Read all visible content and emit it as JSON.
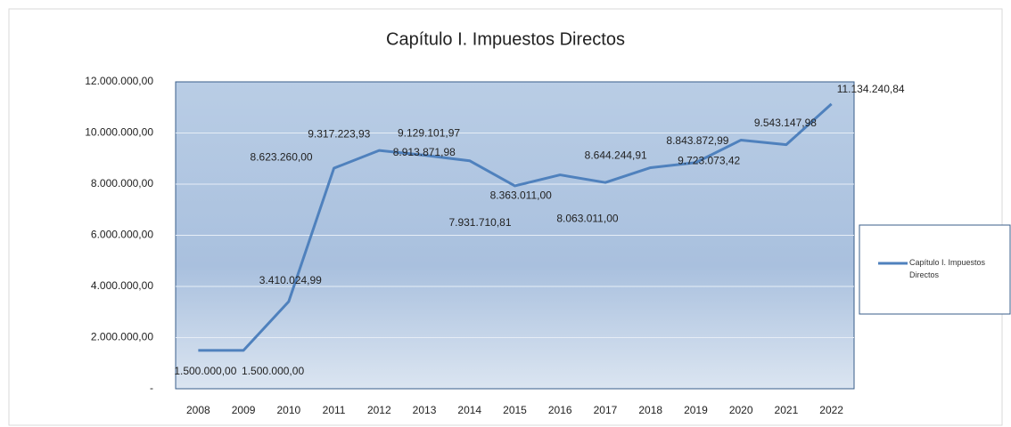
{
  "chart_data": {
    "type": "line",
    "title": "Capítulo I. Impuestos Directos",
    "categories": [
      "2008",
      "2009",
      "2010",
      "2011",
      "2012",
      "2013",
      "2014",
      "2015",
      "2016",
      "2017",
      "2018",
      "2019",
      "2020",
      "2021",
      "2022"
    ],
    "series": [
      {
        "name": "Capítulo I. Impuestos Directos",
        "color": "#4f81bd",
        "values": [
          1500000,
          1500000,
          3410024.99,
          8623260,
          9317223.93,
          9129101.97,
          8913871.98,
          7931710.81,
          8363011,
          8063011,
          8644244.91,
          8843872.99,
          9723073.42,
          9543147.98,
          11134240.84
        ],
        "value_labels": [
          "1.500.000,00",
          "1.500.000,00",
          "3.410.024,99",
          "8.623.260,00",
          "9.317.223,93",
          "9.129.101,97",
          "8.913.871,98",
          "7.931.710,81",
          "8.363.011,00",
          "8.063.011,00",
          "8.644.244,91",
          "8.843.872,99",
          "9.723.073,42",
          "9.543.147,98",
          "11.134.240,84"
        ]
      }
    ],
    "ylim": [
      0,
      12000000
    ],
    "yticks": [
      {
        "value": 0,
        "label": "-"
      },
      {
        "value": 2000000,
        "label": "2.000.000,00"
      },
      {
        "value": 4000000,
        "label": "4.000.000,00"
      },
      {
        "value": 6000000,
        "label": "6.000.000,00"
      },
      {
        "value": 8000000,
        "label": "8.000.000,00"
      },
      {
        "value": 10000000,
        "label": "10.000.000,00"
      },
      {
        "value": 12000000,
        "label": "12.000.000,00"
      }
    ],
    "grid": true,
    "legend": "right"
  }
}
